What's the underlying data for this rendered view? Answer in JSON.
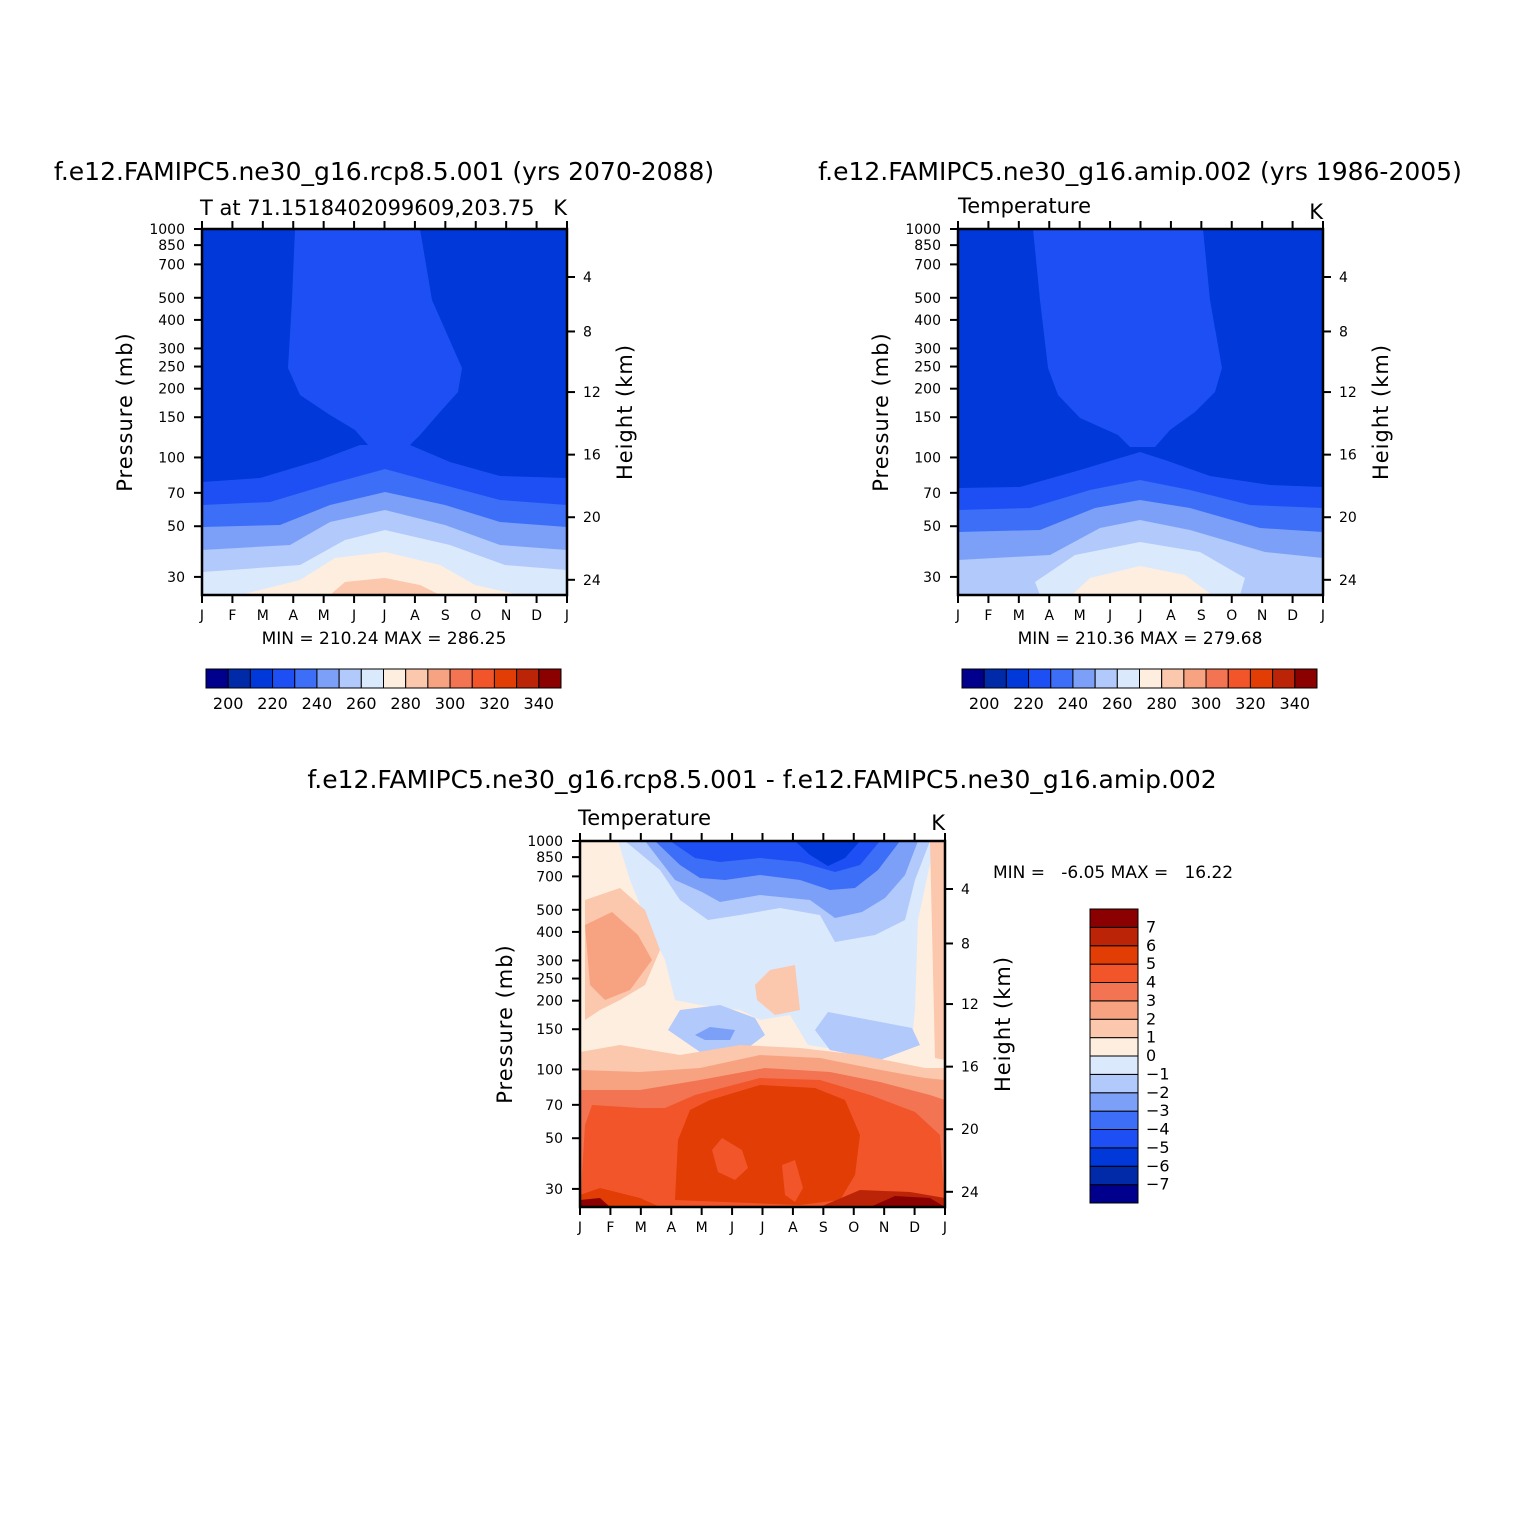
{
  "chart_data": [
    {
      "type": "heatmap",
      "title": "f.e12.FAMIPC5.ne30_g16.rcp8.5.001 (yrs 2070-2088)",
      "left_string": "T at 71.1518402099609,203.75",
      "right_string": "K",
      "ylabel": "Pressure (mb)",
      "ylabel_right": "Height (km)",
      "x_ticks": [
        "J",
        "F",
        "M",
        "A",
        "M",
        "J",
        "J",
        "A",
        "S",
        "O",
        "N",
        "D",
        "J"
      ],
      "y_ticks": [
        "30",
        "50",
        "70",
        "100",
        "150",
        "200",
        "250",
        "300",
        "400",
        "500",
        "700",
        "850",
        "1000"
      ],
      "y_ticks_right": [
        "24",
        "20",
        "16",
        "12",
        "8",
        "4"
      ],
      "ylim": [
        1000,
        25
      ],
      "y_scale": "log",
      "min_max_text": "MIN = 210.24 MAX = 286.25",
      "min": 210.24,
      "max": 286.25,
      "colorbar": {
        "labels": [
          "200",
          "220",
          "240",
          "260",
          "280",
          "300",
          "320",
          "340"
        ],
        "levels": [
          190,
          200,
          210,
          220,
          230,
          240,
          250,
          260,
          270,
          280,
          290,
          300,
          310,
          320,
          330,
          340,
          350
        ],
        "colors": [
          "#00008c",
          "#002aa8",
          "#0038d9",
          "#1d4ff5",
          "#3d6ef7",
          "#7ca0f8",
          "#b1c9fb",
          "#dbe9fd",
          "#feeedf",
          "#fbc7ad",
          "#f7a382",
          "#f27452",
          "#f15529",
          "#e13d05",
          "#bc2408",
          "#8b0000"
        ]
      },
      "grid": false
    },
    {
      "type": "heatmap",
      "title": "f.e12.FAMIPC5.ne30_g16.amip.002 (yrs 1986-2005)",
      "left_string": "Temperature",
      "right_string": "K",
      "ylabel": "Pressure (mb)",
      "ylabel_right": "Height (km)",
      "x_ticks": [
        "J",
        "F",
        "M",
        "A",
        "M",
        "J",
        "J",
        "A",
        "S",
        "O",
        "N",
        "D",
        "J"
      ],
      "y_ticks": [
        "30",
        "50",
        "70",
        "100",
        "150",
        "200",
        "250",
        "300",
        "400",
        "500",
        "700",
        "850",
        "1000"
      ],
      "y_ticks_right": [
        "24",
        "20",
        "16",
        "12",
        "8",
        "4"
      ],
      "ylim": [
        1000,
        25
      ],
      "y_scale": "log",
      "min_max_text": "MIN = 210.36 MAX = 279.68",
      "min": 210.36,
      "max": 279.68,
      "colorbar": {
        "labels": [
          "200",
          "220",
          "240",
          "260",
          "280",
          "300",
          "320",
          "340"
        ],
        "levels": [
          190,
          200,
          210,
          220,
          230,
          240,
          250,
          260,
          270,
          280,
          290,
          300,
          310,
          320,
          330,
          340,
          350
        ],
        "colors": [
          "#00008c",
          "#002aa8",
          "#0038d9",
          "#1d4ff5",
          "#3d6ef7",
          "#7ca0f8",
          "#b1c9fb",
          "#dbe9fd",
          "#feeedf",
          "#fbc7ad",
          "#f7a382",
          "#f27452",
          "#f15529",
          "#e13d05",
          "#bc2408",
          "#8b0000"
        ]
      },
      "grid": false
    },
    {
      "type": "heatmap",
      "title": "f.e12.FAMIPC5.ne30_g16.rcp8.5.001 - f.e12.FAMIPC5.ne30_g16.amip.002",
      "left_string": "Temperature",
      "right_string": "K",
      "ylabel": "Pressure (mb)",
      "ylabel_right": "Height (km)",
      "x_ticks": [
        "J",
        "F",
        "M",
        "A",
        "M",
        "J",
        "J",
        "A",
        "S",
        "O",
        "N",
        "D",
        "J"
      ],
      "y_ticks": [
        "30",
        "50",
        "70",
        "100",
        "150",
        "200",
        "250",
        "300",
        "400",
        "500",
        "700",
        "850",
        "1000"
      ],
      "y_ticks_right": [
        "24",
        "20",
        "16",
        "12",
        "8",
        "4"
      ],
      "ylim": [
        1000,
        25
      ],
      "y_scale": "log",
      "min_max_text": "MIN =   -6.05 MAX =   16.22",
      "min": -6.05,
      "max": 16.22,
      "colorbar": {
        "orientation": "vertical",
        "labels": [
          "7",
          "6",
          "5",
          "4",
          "3",
          "2",
          "1",
          "0",
          "-1",
          "-2",
          "-3",
          "-4",
          "-5",
          "-6",
          "-7"
        ],
        "levels": [
          -8,
          -7,
          -6,
          -5,
          -4,
          -3,
          -2,
          -1,
          0,
          1,
          2,
          3,
          4,
          5,
          6,
          7,
          8
        ],
        "colors": [
          "#00008c",
          "#002aa8",
          "#0038d9",
          "#1d4ff5",
          "#3d6ef7",
          "#7ca0f8",
          "#b1c9fb",
          "#dbe9fd",
          "#feeedf",
          "#fbc7ad",
          "#f7a382",
          "#f27452",
          "#f15529",
          "#e13d05",
          "#bc2408",
          "#8b0000"
        ]
      },
      "grid": false
    }
  ]
}
